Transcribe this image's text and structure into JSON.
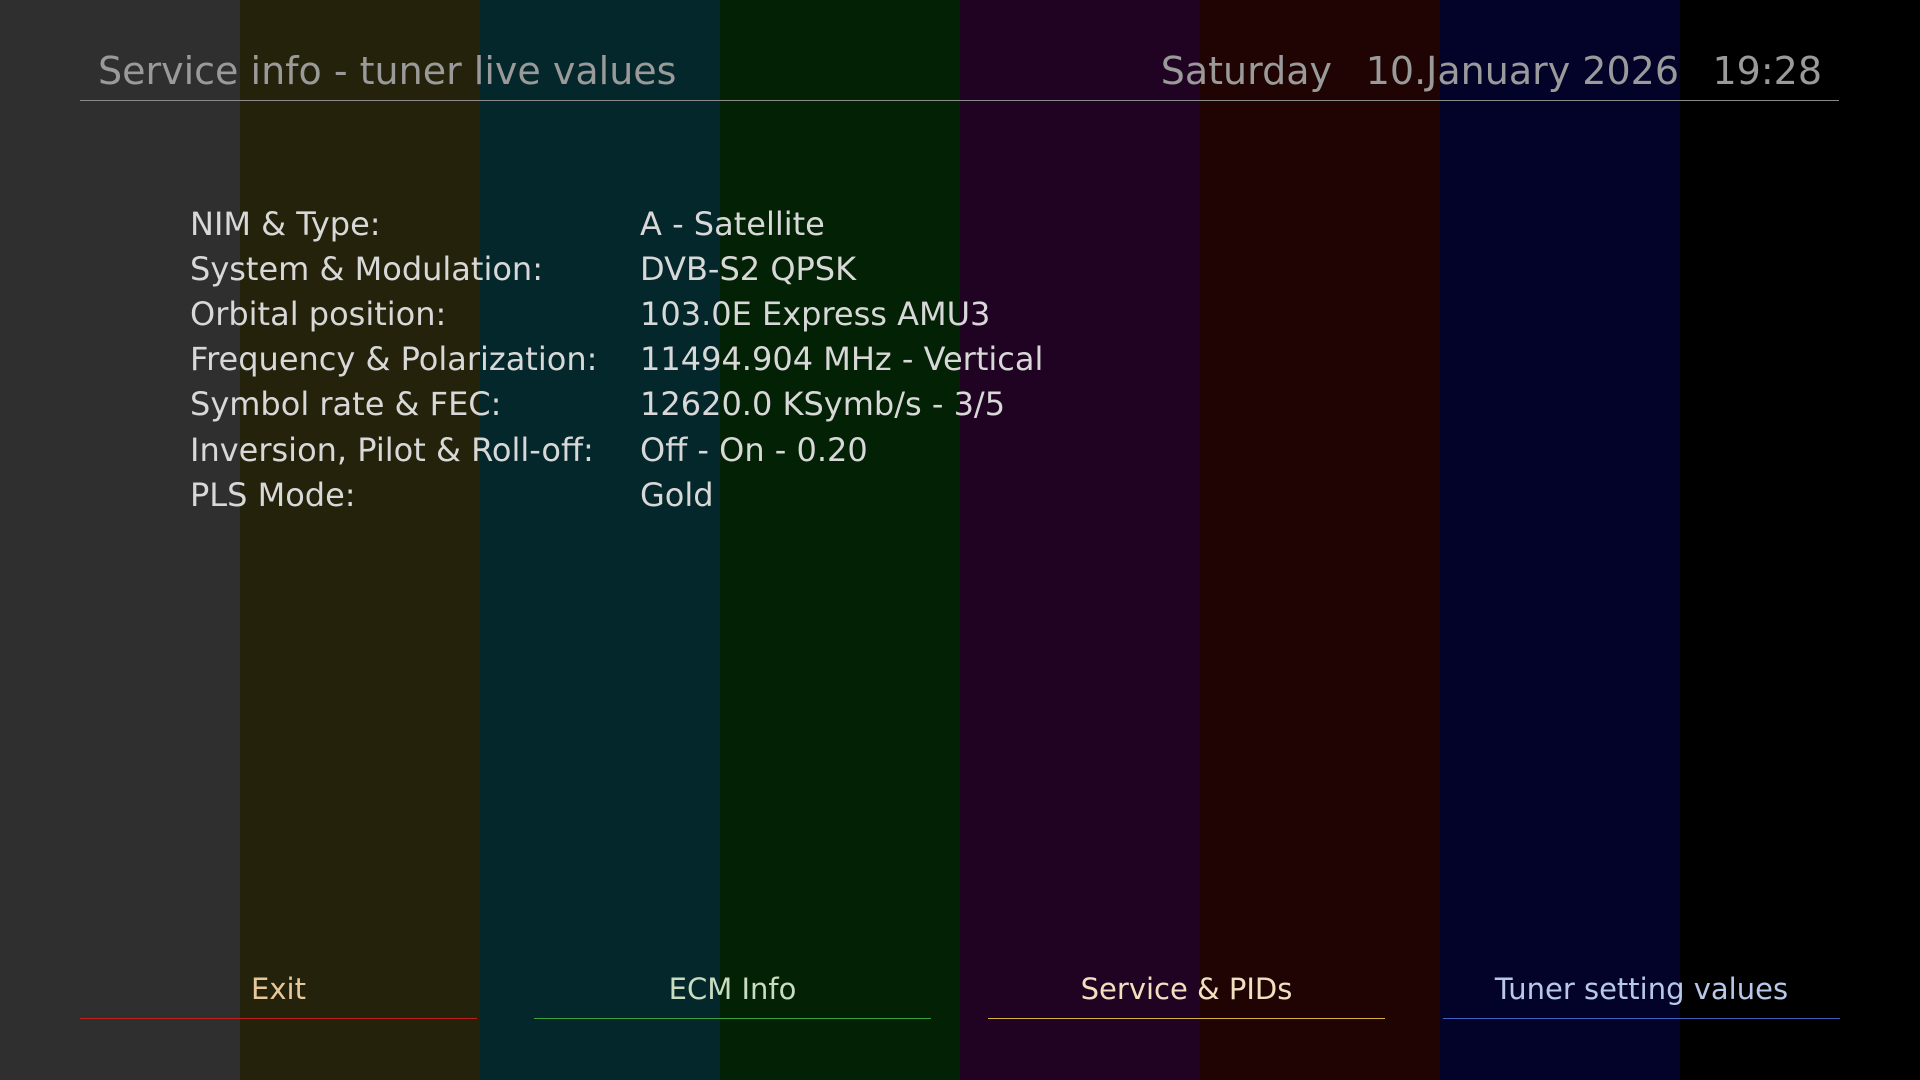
{
  "header": {
    "title": "Service info - tuner live values",
    "day": "Saturday",
    "date": "10.January 2026",
    "time": "19:28"
  },
  "rows": [
    [
      "NIM & Type:",
      "A - Satellite"
    ],
    [
      "System & Modulation:",
      "DVB-S2 QPSK"
    ],
    [
      "Orbital position:",
      "103.0E Express AMU3"
    ],
    [
      "Frequency & Polarization:",
      "11494.904 MHz - Vertical"
    ],
    [
      "Symbol rate & FEC:",
      "12620.0 KSymb/s - 3/5"
    ],
    [
      "Inversion, Pilot & Roll-off:",
      "Off - On - 0.20"
    ],
    [
      "PLS Mode:",
      "Gold"
    ]
  ],
  "buttons": [
    "Exit",
    "ECM Info",
    "Service & PIDs",
    "Tuner setting values"
  ]
}
